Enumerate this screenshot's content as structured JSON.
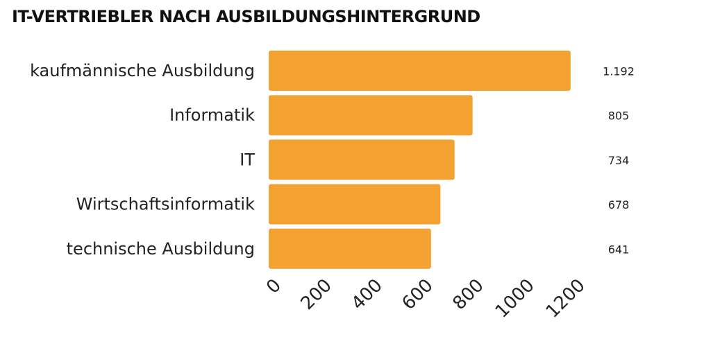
{
  "chart_data": {
    "type": "bar",
    "orientation": "horizontal",
    "title": "IT-VERTRIEBLER NACH AUSBILDUNGSHINTERGRUND",
    "categories": [
      "kaufmännische Ausbildung",
      "Informatik",
      "IT",
      "Wirtschaftsinformatik",
      "technische Ausbildung"
    ],
    "values": [
      1192,
      805,
      734,
      678,
      641
    ],
    "value_labels": [
      "1.192",
      "805",
      "734",
      "678",
      "641"
    ],
    "xlim": [
      0,
      1200
    ],
    "xticks": [
      0,
      200,
      400,
      600,
      800,
      1000,
      1200
    ],
    "xtick_labels": [
      "0",
      "200",
      "400",
      "600",
      "800",
      "1000",
      "1200"
    ],
    "xlabel": "",
    "ylabel": "",
    "grid": false,
    "legend": "none",
    "bar_color": "#f3a232"
  }
}
